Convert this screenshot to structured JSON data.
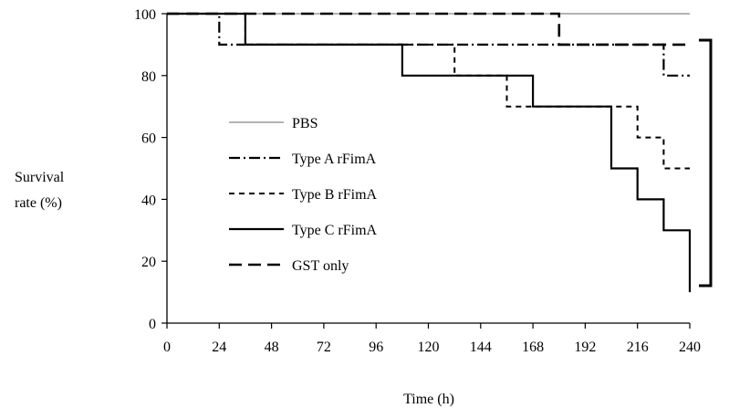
{
  "chart_data": {
    "type": "line",
    "step": true,
    "xlabel": "Time (h)",
    "ylabel": [
      "Survival",
      "rate (%)"
    ],
    "xlim": [
      0,
      240
    ],
    "ylim": [
      0,
      100
    ],
    "xticks": [
      0,
      24,
      48,
      72,
      96,
      120,
      144,
      168,
      192,
      216,
      240
    ],
    "yticks": [
      0,
      20,
      40,
      60,
      80,
      100
    ],
    "grid": false,
    "legend_position": "center-left",
    "series": [
      {
        "name": "PBS",
        "style": "solid-thin",
        "color": "#888888",
        "points": [
          [
            0,
            100
          ],
          [
            240,
            100
          ]
        ]
      },
      {
        "name": "Type A rFimA",
        "style": "dash-dot",
        "color": "#000000",
        "points": [
          [
            0,
            100
          ],
          [
            24,
            100
          ],
          [
            24,
            90
          ],
          [
            228,
            90
          ],
          [
            228,
            80
          ],
          [
            240,
            80
          ]
        ]
      },
      {
        "name": "Type B rFimA",
        "style": "dashed",
        "color": "#000000",
        "points": [
          [
            0,
            100
          ],
          [
            36,
            100
          ],
          [
            36,
            90
          ],
          [
            132,
            90
          ],
          [
            132,
            80
          ],
          [
            156,
            80
          ],
          [
            156,
            70
          ],
          [
            216,
            70
          ],
          [
            216,
            60
          ],
          [
            228,
            60
          ],
          [
            228,
            50
          ],
          [
            240,
            50
          ]
        ]
      },
      {
        "name": "Type C rFimA",
        "style": "solid-thick",
        "color": "#000000",
        "points": [
          [
            0,
            100
          ],
          [
            36,
            100
          ],
          [
            36,
            90
          ],
          [
            108,
            90
          ],
          [
            108,
            80
          ],
          [
            168,
            80
          ],
          [
            168,
            70
          ],
          [
            204,
            70
          ],
          [
            204,
            50
          ],
          [
            216,
            50
          ],
          [
            216,
            40
          ],
          [
            228,
            40
          ],
          [
            228,
            30
          ],
          [
            240,
            30
          ],
          [
            240,
            10
          ]
        ]
      },
      {
        "name": "GST only",
        "style": "long-dash",
        "color": "#000000",
        "points": [
          [
            0,
            100
          ],
          [
            180,
            100
          ],
          [
            180,
            90
          ],
          [
            240,
            90
          ]
        ]
      }
    ],
    "annotations": [
      "bracket"
    ]
  }
}
